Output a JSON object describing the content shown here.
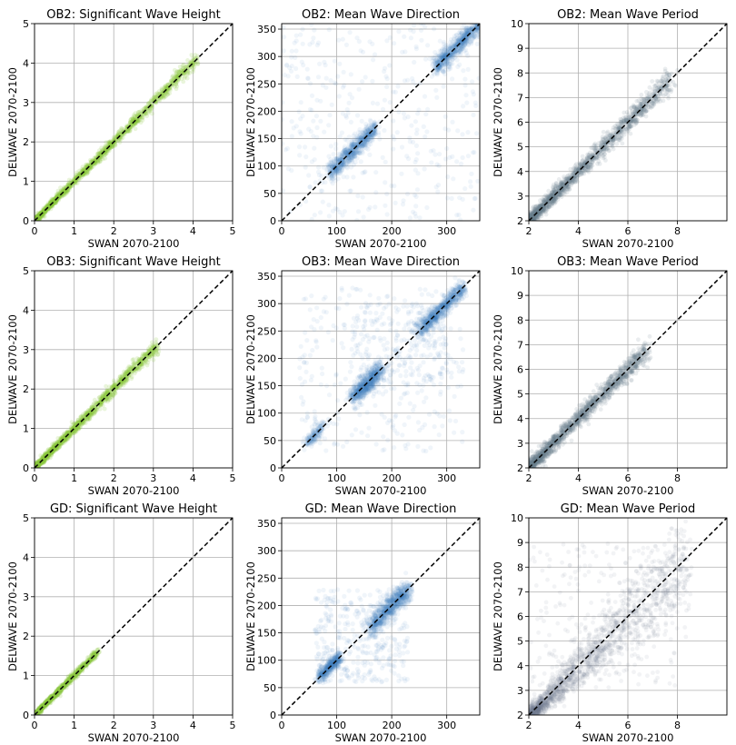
{
  "chart_data": [
    {
      "type": "scatter",
      "title": "OB2: Significant Wave Height",
      "xlabel": "SWAN 2070-2100",
      "ylabel": "DELWAVE 2070-2100",
      "xlim": [
        0,
        5
      ],
      "ylim": [
        0,
        5
      ],
      "xticks": [
        0,
        1,
        2,
        3,
        4,
        5
      ],
      "yticks": [
        0,
        1,
        2,
        3,
        4,
        5
      ],
      "grid": true,
      "color": "#8cc63f",
      "reference_line": "y = x (black dashed)",
      "points": [
        [
          0,
          0
        ],
        [
          0.5,
          0.5
        ],
        [
          1,
          1
        ],
        [
          1.5,
          1.5
        ],
        [
          2,
          2
        ],
        [
          2.5,
          2.5
        ],
        [
          3,
          3
        ],
        [
          3.5,
          3.5
        ],
        [
          4,
          4
        ]
      ]
    },
    {
      "type": "scatter",
      "title": "OB2: Mean Wave Direction",
      "xlabel": "SWAN 2070-2100",
      "ylabel": "DELWAVE 2070-2100",
      "xlim": [
        0,
        360
      ],
      "ylim": [
        0,
        360
      ],
      "xticks": [
        0,
        100,
        200,
        300
      ],
      "yticks": [
        0,
        50,
        100,
        150,
        200,
        250,
        300,
        350
      ],
      "grid": true,
      "color": "#3a7dbd",
      "reference_line": "y = x (black dashed)",
      "points": [
        [
          100,
          100
        ],
        [
          120,
          120
        ],
        [
          150,
          150
        ],
        [
          300,
          290
        ],
        [
          320,
          310
        ],
        [
          350,
          350
        ],
        [
          20,
          200
        ],
        [
          30,
          330
        ],
        [
          340,
          150
        ],
        [
          110,
          60
        ]
      ]
    },
    {
      "type": "scatter",
      "title": "OB2: Mean Wave Period",
      "xlabel": "SWAN 2070-2100",
      "ylabel": "DELWAVE 2070-2100",
      "xlim": [
        2,
        10
      ],
      "ylim": [
        2,
        10
      ],
      "xticks": [
        2,
        4,
        6,
        8
      ],
      "yticks": [
        2,
        3,
        4,
        5,
        6,
        7,
        8,
        9,
        10
      ],
      "grid": true,
      "color": "#6b7f8f",
      "reference_line": "y = x (black dashed)",
      "points": [
        [
          2,
          2
        ],
        [
          3,
          3
        ],
        [
          4,
          4
        ],
        [
          5,
          5
        ],
        [
          6,
          6
        ],
        [
          7,
          7
        ],
        [
          8,
          8
        ]
      ]
    },
    {
      "type": "scatter",
      "title": "OB3: Significant Wave Height",
      "xlabel": "SWAN 2070-2100",
      "ylabel": "DELWAVE 2070-2100",
      "xlim": [
        0,
        5
      ],
      "ylim": [
        0,
        5
      ],
      "xticks": [
        0,
        1,
        2,
        3,
        4,
        5
      ],
      "yticks": [
        0,
        1,
        2,
        3,
        4,
        5
      ],
      "grid": true,
      "color": "#8cc63f",
      "reference_line": "y = x (black dashed)",
      "points": [
        [
          0,
          0
        ],
        [
          0.5,
          0.5
        ],
        [
          1,
          1
        ],
        [
          1.5,
          1.5
        ],
        [
          2,
          2
        ],
        [
          2.5,
          2.5
        ],
        [
          3,
          3
        ]
      ]
    },
    {
      "type": "scatter",
      "title": "OB3: Mean Wave Direction",
      "xlabel": "SWAN 2070-2100",
      "ylabel": "DELWAVE 2070-2100",
      "xlim": [
        0,
        360
      ],
      "ylim": [
        0,
        360
      ],
      "xticks": [
        0,
        100,
        200,
        300
      ],
      "yticks": [
        0,
        50,
        100,
        150,
        200,
        250,
        300,
        350
      ],
      "grid": true,
      "color": "#3a7dbd",
      "reference_line": "y = x (black dashed)",
      "points": [
        [
          60,
          60
        ],
        [
          140,
          140
        ],
        [
          160,
          160
        ],
        [
          270,
          270
        ],
        [
          300,
          300
        ],
        [
          320,
          320
        ],
        [
          140,
          250
        ],
        [
          290,
          150
        ],
        [
          40,
          220
        ]
      ]
    },
    {
      "type": "scatter",
      "title": "OB3: Mean Wave Period",
      "xlabel": "SWAN 2070-2100",
      "ylabel": "DELWAVE 2070-2100",
      "xlim": [
        2,
        10
      ],
      "ylim": [
        2,
        10
      ],
      "xticks": [
        2,
        4,
        6,
        8
      ],
      "yticks": [
        2,
        3,
        4,
        5,
        6,
        7,
        8,
        9,
        10
      ],
      "grid": true,
      "color": "#6b7f8f",
      "reference_line": "y = x (black dashed)",
      "points": [
        [
          2,
          2
        ],
        [
          3,
          3
        ],
        [
          4,
          4
        ],
        [
          5,
          5
        ],
        [
          6,
          6
        ],
        [
          6.5,
          6.5
        ]
      ]
    },
    {
      "type": "scatter",
      "title": "GD: Significant Wave Height",
      "xlabel": "SWAN 2070-2100",
      "ylabel": "DELWAVE 2070-2100",
      "xlim": [
        0,
        5
      ],
      "ylim": [
        0,
        5
      ],
      "xticks": [
        0,
        1,
        2,
        3,
        4,
        5
      ],
      "yticks": [
        0,
        1,
        2,
        3,
        4,
        5
      ],
      "grid": true,
      "color": "#8cc63f",
      "reference_line": "y = x (black dashed)",
      "points": [
        [
          0,
          0
        ],
        [
          0.5,
          0.5
        ],
        [
          1,
          1
        ],
        [
          1.5,
          1.5
        ]
      ]
    },
    {
      "type": "scatter",
      "title": "GD: Mean Wave Direction",
      "xlabel": "SWAN 2070-2100",
      "ylabel": "DELWAVE 2070-2100",
      "xlim": [
        0,
        360
      ],
      "ylim": [
        0,
        360
      ],
      "xticks": [
        0,
        100,
        200,
        300
      ],
      "yticks": [
        0,
        50,
        100,
        150,
        200,
        250,
        300,
        350
      ],
      "grid": true,
      "color": "#3a7dbd",
      "reference_line": "y = x (black dashed)",
      "points": [
        [
          70,
          70
        ],
        [
          90,
          90
        ],
        [
          170,
          170
        ],
        [
          200,
          190
        ],
        [
          220,
          210
        ],
        [
          230,
          230
        ],
        [
          100,
          170
        ],
        [
          210,
          110
        ]
      ]
    },
    {
      "type": "scatter",
      "title": "GD: Mean Wave Period",
      "xlabel": "SWAN 2070-2100",
      "ylabel": "DELWAVE 2070-2100",
      "xlim": [
        2,
        10
      ],
      "ylim": [
        2,
        10
      ],
      "xticks": [
        2,
        4,
        6,
        8
      ],
      "yticks": [
        2,
        3,
        4,
        5,
        6,
        7,
        8,
        9,
        10
      ],
      "grid": true,
      "color": "#6b7f8f",
      "reference_line": "y = x (black dashed)",
      "points": [
        [
          2,
          2.3
        ],
        [
          3,
          3
        ],
        [
          4,
          3.9
        ],
        [
          5,
          4.8
        ],
        [
          6,
          5.8
        ]
      ]
    }
  ]
}
